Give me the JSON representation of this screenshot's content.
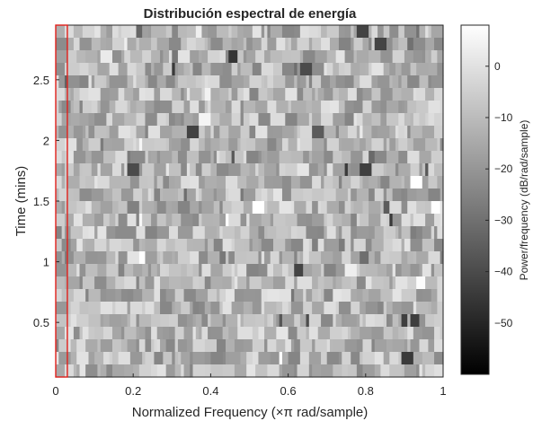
{
  "chart_data": {
    "type": "heatmap",
    "title": "Distribución espectral de energía",
    "xlabel": "Normalized Frequency  (×π rad/sample)",
    "ylabel": "Time (mins)",
    "xlim": [
      0,
      1
    ],
    "ylim": [
      0.05,
      2.95
    ],
    "x_ticks": [
      0,
      0.2,
      0.4,
      0.6,
      0.8,
      1
    ],
    "x_tick_labels": [
      "0",
      "0.2",
      "0.4",
      "0.6",
      "0.8",
      "1"
    ],
    "y_ticks": [
      0.5,
      1,
      1.5,
      2,
      2.5
    ],
    "y_tick_labels": [
      "0.5",
      "1",
      "1.5",
      "2",
      "2.5"
    ],
    "colormap": "gray",
    "colorbar": {
      "label": "Power/frequency (dB/rad/sample)",
      "range": [
        -60,
        8
      ],
      "ticks": [
        0,
        -10,
        -20,
        -30,
        -40,
        -50
      ],
      "tick_labels": [
        "0",
        "−10",
        "−20",
        "−30",
        "−40",
        "−50"
      ]
    },
    "highlight": {
      "shape": "rectangle",
      "color": "#e0201b",
      "x_range": [
        0,
        0.03
      ],
      "y_range": [
        0.05,
        2.95
      ]
    },
    "grid": {
      "time_rows": 28,
      "frequency_bins": 130,
      "typical_level_db": -12
    }
  }
}
